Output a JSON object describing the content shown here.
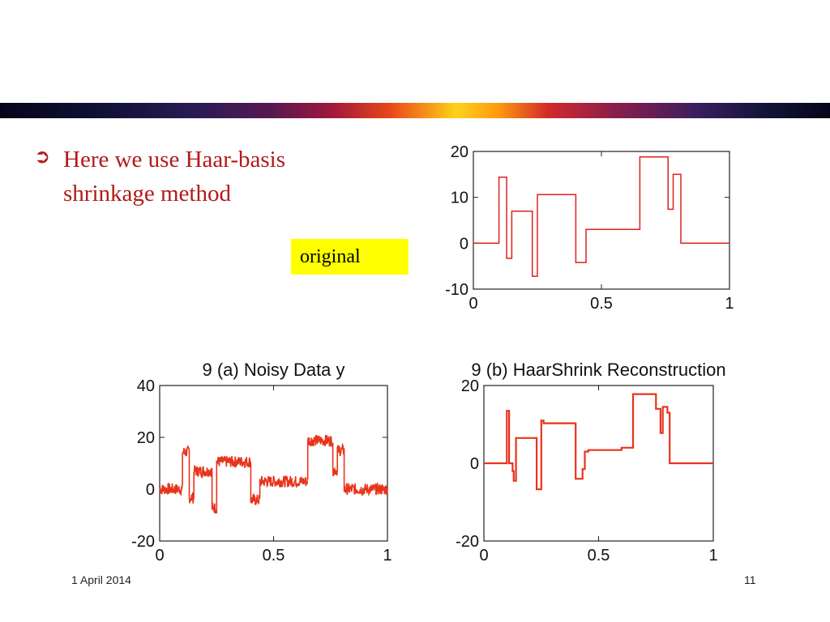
{
  "slide": {
    "bullet_text": "Here we use Haar-basis shrinkage method",
    "label_box": "original",
    "footer_date": "1 April 2014",
    "page_number": "11"
  },
  "colors": {
    "line": "#e02020",
    "line_dark": "#e8341c",
    "text": "#b31a1a"
  },
  "chart_data": [
    {
      "type": "line",
      "title": "",
      "xlabel": "",
      "ylabel": "",
      "xlim": [
        0,
        1
      ],
      "ylim": [
        -10,
        20
      ],
      "xticks": [
        0,
        0.5,
        1
      ],
      "yticks": [
        -10,
        0,
        10,
        20
      ],
      "xtick_labels": [
        "0",
        "0.5",
        "1"
      ],
      "ytick_labels": [
        "-10",
        "0",
        "10",
        "20"
      ],
      "series": [
        {
          "x": [
            0,
            0.1,
            0.1,
            0.13,
            0.13,
            0.15,
            0.15,
            0.23,
            0.23,
            0.25,
            0.25,
            0.4,
            0.4,
            0.44,
            0.44,
            0.65,
            0.65,
            0.76,
            0.76,
            0.78,
            0.78,
            0.81,
            0.81,
            1
          ],
          "y": [
            0,
            0,
            14.4,
            14.4,
            -3.3,
            -3.3,
            7,
            7,
            -7.2,
            -7.2,
            10.6,
            10.6,
            -4.2,
            -4.2,
            3,
            3,
            18.8,
            18.8,
            7.4,
            7.4,
            15,
            15,
            0,
            0
          ]
        }
      ]
    },
    {
      "type": "line",
      "title": "9 (a) Noisy Data y",
      "xlabel": "",
      "ylabel": "",
      "xlim": [
        0,
        1
      ],
      "ylim": [
        -20,
        40
      ],
      "xticks": [
        0,
        0.5,
        1
      ],
      "yticks": [
        -20,
        0,
        20,
        40
      ],
      "xtick_labels": [
        "0",
        "0.5",
        "1"
      ],
      "ytick_labels": [
        "-20",
        "0",
        "20",
        "40"
      ],
      "noisy": true,
      "series": [
        {
          "x": [
            0,
            0.1,
            0.1,
            0.13,
            0.13,
            0.15,
            0.15,
            0.23,
            0.23,
            0.25,
            0.25,
            0.4,
            0.4,
            0.44,
            0.44,
            0.65,
            0.65,
            0.76,
            0.76,
            0.78,
            0.78,
            0.81,
            0.81,
            1
          ],
          "y": [
            0,
            0,
            14.4,
            14.4,
            -3.3,
            -3.3,
            7,
            7,
            -7.2,
            -7.2,
            10.6,
            10.6,
            -4.2,
            -4.2,
            3,
            3,
            18.8,
            18.8,
            7.4,
            7.4,
            15,
            15,
            0,
            0
          ]
        }
      ]
    },
    {
      "type": "line",
      "title": "9 (b) HaarShrink Reconstruction",
      "xlabel": "",
      "ylabel": "",
      "xlim": [
        0,
        1
      ],
      "ylim": [
        -20,
        20
      ],
      "xticks": [
        0,
        0.5,
        1
      ],
      "yticks": [
        -20,
        0,
        20
      ],
      "xtick_labels": [
        "0",
        "0.5",
        "1"
      ],
      "ytick_labels": [
        "-20",
        "0",
        "20"
      ],
      "series": [
        {
          "x": [
            0,
            0.1,
            0.1,
            0.11,
            0.11,
            0.125,
            0.125,
            0.13,
            0.13,
            0.14,
            0.14,
            0.145,
            0.145,
            0.23,
            0.23,
            0.25,
            0.25,
            0.26,
            0.26,
            0.4,
            0.4,
            0.43,
            0.43,
            0.44,
            0.44,
            0.455,
            0.455,
            0.6,
            0.6,
            0.65,
            0.65,
            0.75,
            0.75,
            0.77,
            0.77,
            0.78,
            0.78,
            0.8,
            0.8,
            0.81,
            0.81,
            1
          ],
          "y": [
            0,
            0,
            13.5,
            13.5,
            0,
            0,
            -2,
            -2,
            -4.5,
            -4.5,
            6.5,
            6.5,
            6.5,
            6.5,
            -6.7,
            -6.7,
            11,
            11,
            10.3,
            10.3,
            -4,
            -4,
            -1.5,
            -1.5,
            3,
            3,
            3.4,
            3.4,
            4,
            4,
            17.8,
            17.8,
            14,
            14,
            7.8,
            7.8,
            14.5,
            14.5,
            13,
            13,
            0,
            0
          ]
        }
      ]
    }
  ]
}
